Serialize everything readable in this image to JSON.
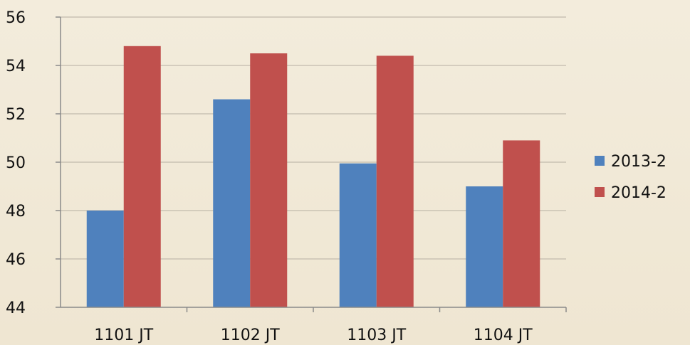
{
  "chart_data": {
    "type": "bar",
    "categories": [
      "1101 JT",
      "1102 JT",
      "1103 JT",
      "1104 JT"
    ],
    "series": [
      {
        "name": "2013-2",
        "values": [
          48.0,
          52.6,
          49.95,
          49.0
        ]
      },
      {
        "name": "2014-2",
        "values": [
          54.8,
          54.5,
          54.4,
          50.9
        ]
      }
    ],
    "y_ticks": [
      "44",
      "46",
      "48",
      "50",
      "52",
      "54",
      "56"
    ],
    "ylim": [
      44,
      56
    ],
    "grid": "horizontal",
    "legend_position": "right",
    "colors": [
      "#4f81bd",
      "#c0504d"
    ]
  }
}
